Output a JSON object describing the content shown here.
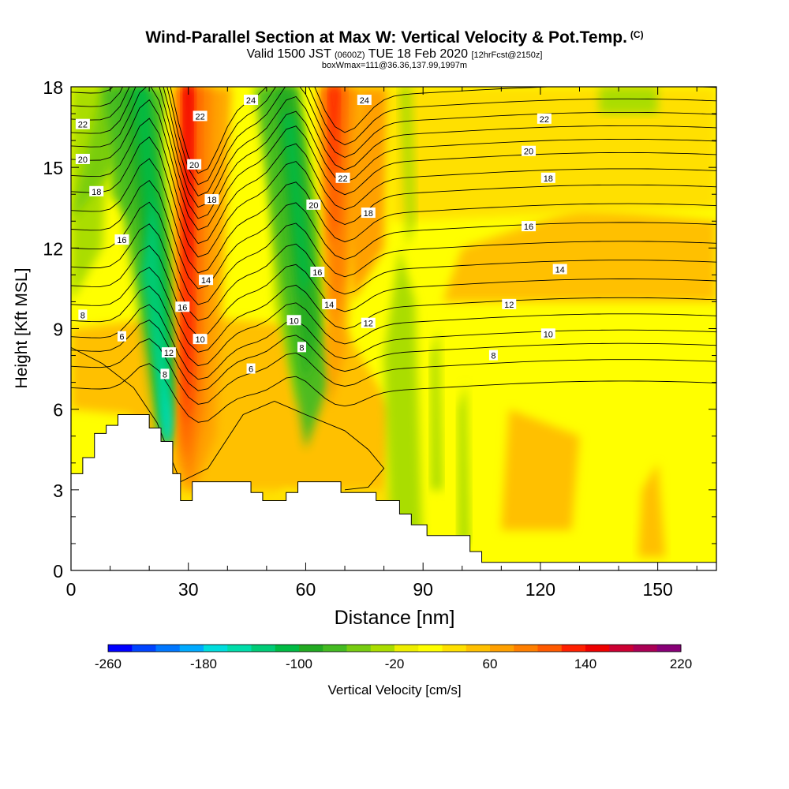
{
  "title": "Wind-Parallel Section at Max W: Vertical Velocity & Pot.Temp.",
  "title_mark": "(C)",
  "subtitle": {
    "valid": "Valid 1500 JST",
    "utc": "(0600Z)",
    "date": "TUE 18 Feb 2020",
    "forecast": "[12hrFcst@2150z]"
  },
  "subline": "boxWmax=111@36.36,137.99,1997m",
  "chart_data": {
    "type": "heatmap",
    "xlabel": "Distance [nm]",
    "ylabel": "Height [Kft MSL]",
    "xlim": [
      0,
      165
    ],
    "ylim": [
      0,
      18
    ],
    "x_ticks": [
      0,
      30,
      60,
      90,
      120,
      150
    ],
    "y_ticks": [
      0,
      3,
      6,
      9,
      12,
      15,
      18
    ],
    "colorbar": {
      "label": "Vertical Velocity [cm/s]",
      "min": -260,
      "max": 220,
      "step": 20,
      "tick_values": [
        -260,
        -180,
        -100,
        -20,
        60,
        140,
        220
      ],
      "colors": [
        "#0000ff",
        "#0044ff",
        "#0077ff",
        "#00aaff",
        "#00dddd",
        "#00ddaa",
        "#00cc77",
        "#00bb44",
        "#22aa22",
        "#44bb22",
        "#77cc11",
        "#aadd00",
        "#eeee00",
        "#ffff00",
        "#ffe000",
        "#ffc000",
        "#ffa000",
        "#ff7f00",
        "#ff5a00",
        "#ff2000",
        "#ee0000",
        "#cc0033",
        "#aa0055",
        "#880077"
      ]
    },
    "contour_variable": "Potential Temperature",
    "contour_labels": [
      {
        "value": "22",
        "x": 3,
        "y": 16.6
      },
      {
        "value": "20",
        "x": 3,
        "y": 15.3
      },
      {
        "value": "18",
        "x": 6.5,
        "y": 14.1
      },
      {
        "value": "16",
        "x": 13,
        "y": 12.3
      },
      {
        "value": "8",
        "x": 3,
        "y": 9.5
      },
      {
        "value": "6",
        "x": 13,
        "y": 8.7
      },
      {
        "value": "24",
        "x": 46,
        "y": 17.5
      },
      {
        "value": "22",
        "x": 33,
        "y": 16.9
      },
      {
        "value": "20",
        "x": 31.5,
        "y": 15.1
      },
      {
        "value": "18",
        "x": 36,
        "y": 13.8
      },
      {
        "value": "14",
        "x": 34.5,
        "y": 10.8
      },
      {
        "value": "16",
        "x": 28.5,
        "y": 9.8
      },
      {
        "value": "10",
        "x": 33,
        "y": 8.6
      },
      {
        "value": "12",
        "x": 25,
        "y": 8.1
      },
      {
        "value": "8",
        "x": 24,
        "y": 7.3
      },
      {
        "value": "6",
        "x": 46,
        "y": 7.5
      },
      {
        "value": "24",
        "x": 75,
        "y": 17.5
      },
      {
        "value": "22",
        "x": 69.5,
        "y": 14.6
      },
      {
        "value": "20",
        "x": 62,
        "y": 13.6
      },
      {
        "value": "18",
        "x": 76,
        "y": 13.3
      },
      {
        "value": "16",
        "x": 63,
        "y": 11.1
      },
      {
        "value": "14",
        "x": 66,
        "y": 9.9
      },
      {
        "value": "10",
        "x": 57,
        "y": 9.3
      },
      {
        "value": "12",
        "x": 76,
        "y": 9.2
      },
      {
        "value": "8",
        "x": 59,
        "y": 8.3
      },
      {
        "value": "22",
        "x": 121,
        "y": 16.8
      },
      {
        "value": "20",
        "x": 117,
        "y": 15.6
      },
      {
        "value": "18",
        "x": 122,
        "y": 14.6
      },
      {
        "value": "16",
        "x": 117,
        "y": 12.8
      },
      {
        "value": "14",
        "x": 125,
        "y": 11.2
      },
      {
        "value": "12",
        "x": 112,
        "y": 9.9
      },
      {
        "value": "10",
        "x": 122,
        "y": 8.8
      },
      {
        "value": "8",
        "x": 108,
        "y": 8.0
      }
    ],
    "terrain_profile": [
      [
        0,
        3.6
      ],
      [
        3,
        4.2
      ],
      [
        6,
        5.1
      ],
      [
        9,
        5.4
      ],
      [
        12,
        5.8
      ],
      [
        17,
        5.8
      ],
      [
        20,
        5.3
      ],
      [
        23,
        4.8
      ],
      [
        26,
        3.6
      ],
      [
        28,
        2.6
      ],
      [
        31,
        3.3
      ],
      [
        40,
        3.3
      ],
      [
        46,
        2.9
      ],
      [
        49,
        2.6
      ],
      [
        55,
        2.9
      ],
      [
        58,
        3.3
      ],
      [
        65,
        3.3
      ],
      [
        69,
        2.9
      ],
      [
        78,
        2.6
      ],
      [
        80,
        2.6
      ],
      [
        84,
        2.1
      ],
      [
        87,
        1.7
      ],
      [
        91,
        1.3
      ],
      [
        99,
        1.3
      ],
      [
        102,
        0.7
      ],
      [
        105,
        0.3
      ],
      [
        165,
        0.3
      ]
    ]
  }
}
